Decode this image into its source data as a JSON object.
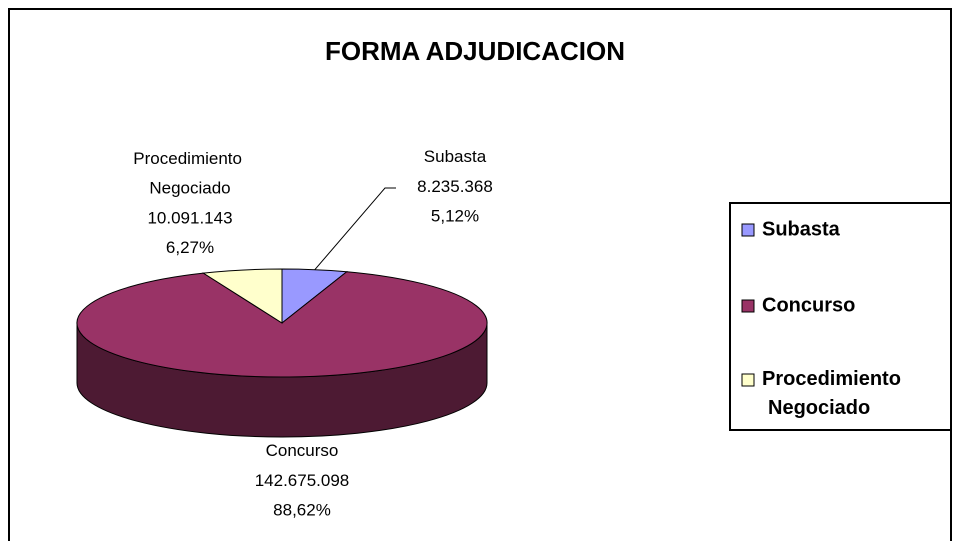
{
  "chart_data": {
    "type": "pie",
    "title": "FORMA ADJUDICACION",
    "categories": [
      "Subasta",
      "Concurso",
      "Procedimiento Negociado"
    ],
    "values": [
      8235368,
      142675098,
      10091143
    ],
    "value_labels": [
      "8.235.368",
      "142.675.098",
      "10.091.143"
    ],
    "percents": [
      5.12,
      88.62,
      6.27
    ],
    "percent_labels": [
      "5,12%",
      "88,62%",
      "6,27%"
    ],
    "colors": [
      "#9999ff",
      "#993366",
      "#ffffcc"
    ],
    "side_colors": [
      "#4d4d80",
      "#4d1a33",
      "#80806a"
    ],
    "legend": "right"
  }
}
